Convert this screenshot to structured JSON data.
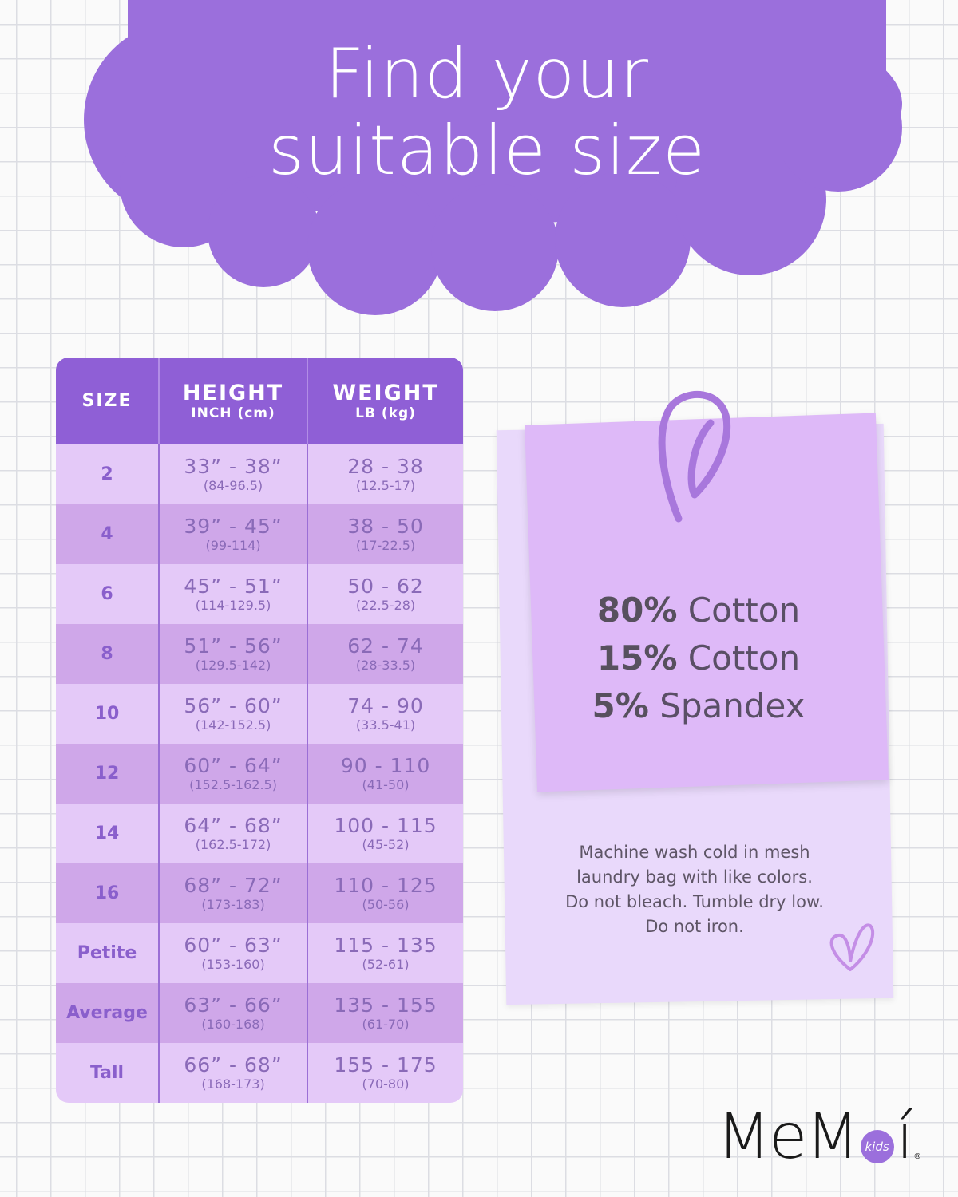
{
  "title": {
    "line1": "Find your",
    "line2": "suitable size"
  },
  "colors": {
    "cloud": "#9b6fdc",
    "header": "#8f5fd6",
    "row_light": "#e4c9f8",
    "row_dark": "#cfa7e9",
    "note": "#deb9f8"
  },
  "table": {
    "headers": {
      "size": "SIZE",
      "height": "HEIGHT",
      "height_unit": "INCH (cm)",
      "weight": "WEIGHT",
      "weight_unit": "LB (kg)"
    },
    "rows": [
      {
        "size": "2",
        "height": "33” - 38”",
        "height_cm": "(84-96.5)",
        "weight": "28 - 38",
        "weight_kg": "(12.5-17)"
      },
      {
        "size": "4",
        "height": "39” - 45”",
        "height_cm": "(99-114)",
        "weight": "38 - 50",
        "weight_kg": "(17-22.5)"
      },
      {
        "size": "6",
        "height": "45” - 51”",
        "height_cm": "(114-129.5)",
        "weight": "50 - 62",
        "weight_kg": "(22.5-28)"
      },
      {
        "size": "8",
        "height": "51” - 56”",
        "height_cm": "(129.5-142)",
        "weight": "62 - 74",
        "weight_kg": "(28-33.5)"
      },
      {
        "size": "10",
        "height": "56” - 60”",
        "height_cm": "(142-152.5)",
        "weight": "74 - 90",
        "weight_kg": "(33.5-41)"
      },
      {
        "size": "12",
        "height": "60” - 64”",
        "height_cm": "(152.5-162.5)",
        "weight": "90 - 110",
        "weight_kg": "(41-50)"
      },
      {
        "size": "14",
        "height": "64” - 68”",
        "height_cm": "(162.5-172)",
        "weight": "100 - 115",
        "weight_kg": "(45-52)"
      },
      {
        "size": "16",
        "height": "68” - 72”",
        "height_cm": "(173-183)",
        "weight": "110 - 125",
        "weight_kg": "(50-56)"
      },
      {
        "size": "Petite",
        "height": "60” - 63”",
        "height_cm": "(153-160)",
        "weight": "115 - 135",
        "weight_kg": "(52-61)"
      },
      {
        "size": "Average",
        "height": "63” - 66”",
        "height_cm": "(160-168)",
        "weight": "135 - 155",
        "weight_kg": "(61-70)"
      },
      {
        "size": "Tall",
        "height": "66” - 68”",
        "height_cm": "(168-173)",
        "weight": "155 - 175",
        "weight_kg": "(70-80)"
      }
    ]
  },
  "fabric": [
    {
      "pct": "80%",
      "name": "Cotton"
    },
    {
      "pct": "15%",
      "name": "Cotton"
    },
    {
      "pct": "5%",
      "name": "Spandex"
    }
  ],
  "care": [
    "Machine wash cold in mesh",
    "laundry bag with like colors.",
    "Do not bleach. Tumble dry low.",
    "Do not iron."
  ],
  "icons": [
    "paperclip-icon",
    "heart-doodle-icon"
  ],
  "logo": {
    "text": "MeMoí",
    "badge": "kids",
    "reg": "®"
  }
}
